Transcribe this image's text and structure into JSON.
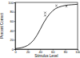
{
  "chart_data": {
    "type": "line",
    "x_label": "Stimulus Level",
    "y_label": "Percent Correct",
    "xlim": [
      0,
      100
    ],
    "xticks": [
      0,
      20,
      40,
      60,
      80,
      100
    ],
    "ylim": [
      0,
      100
    ],
    "yticks": [
      0,
      20,
      40,
      60,
      80,
      100
    ],
    "series": [
      {
        "type": "line",
        "color": "#000000",
        "line_style": "solid",
        "x": [
          0,
          5,
          10,
          15,
          20,
          25,
          30,
          35,
          40,
          45,
          50,
          55,
          60,
          65,
          70,
          75,
          80,
          85,
          90,
          95,
          100
        ],
        "values": [
          1,
          2,
          3,
          5,
          8,
          13,
          20,
          30,
          42,
          55,
          66,
          75,
          82,
          87,
          90,
          92,
          93.5,
          94.5,
          95,
          95.5,
          96
        ]
      },
      {
        "type": "scatter",
        "color": "#000000",
        "marker": "x",
        "x": [
          48,
          48,
          66,
          82
        ],
        "values": [
          78,
          72,
          93,
          92
        ]
      }
    ]
  }
}
